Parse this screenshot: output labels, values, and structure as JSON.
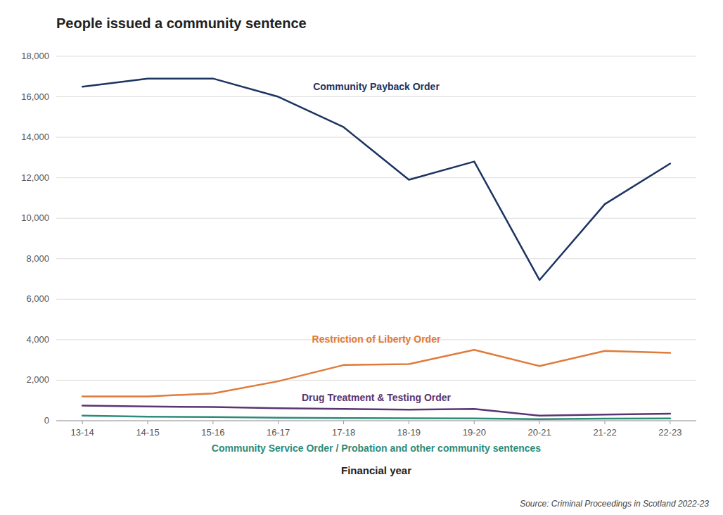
{
  "chart_data": {
    "type": "line",
    "title": "People issued a community sentence",
    "x_label": "Financial year",
    "source": "Source: Criminal Proceedings in Scotland 2022-23",
    "categories": [
      "13-14",
      "14-15",
      "15-16",
      "16-17",
      "17-18",
      "18-19",
      "19-20",
      "20-21",
      "21-22",
      "22-23"
    ],
    "series": [
      {
        "name": "Community Payback Order",
        "color": "#1c3461",
        "values": [
          16500,
          16900,
          16900,
          16000,
          14500,
          11900,
          12800,
          6950,
          10700,
          12700
        ]
      },
      {
        "name": "Restriction of Liberty Order",
        "color": "#e07b39",
        "values": [
          1200,
          1200,
          1350,
          1950,
          2750,
          2800,
          3500,
          2700,
          3450,
          3350
        ]
      },
      {
        "name": "Drug Treatment & Testing Order",
        "color": "#5b3472",
        "values": [
          750,
          700,
          680,
          620,
          580,
          550,
          580,
          250,
          300,
          350
        ]
      },
      {
        "name": "Community Service Order / Probation and other community sentences",
        "color": "#2d8b7a",
        "values": [
          250,
          200,
          180,
          150,
          130,
          120,
          110,
          80,
          100,
          110
        ]
      }
    ],
    "ylim": [
      0,
      18000
    ],
    "yticks": [
      0,
      {
        "value": 2000,
        "label": "2,000"
      },
      {
        "value": 4000,
        "label": "4,000"
      },
      {
        "value": 6000,
        "label": "6,000"
      },
      {
        "value": 8000,
        "label": "8,000"
      },
      {
        "value": 10000,
        "label": "10,000"
      },
      {
        "value": 12000,
        "label": "12,000"
      },
      {
        "value": 14000,
        "label": "14,000"
      },
      {
        "value": 16000,
        "label": "16,000"
      },
      {
        "value": 18000,
        "label": "18,000"
      }
    ],
    "grid": true,
    "background_color": "#ffffff"
  }
}
